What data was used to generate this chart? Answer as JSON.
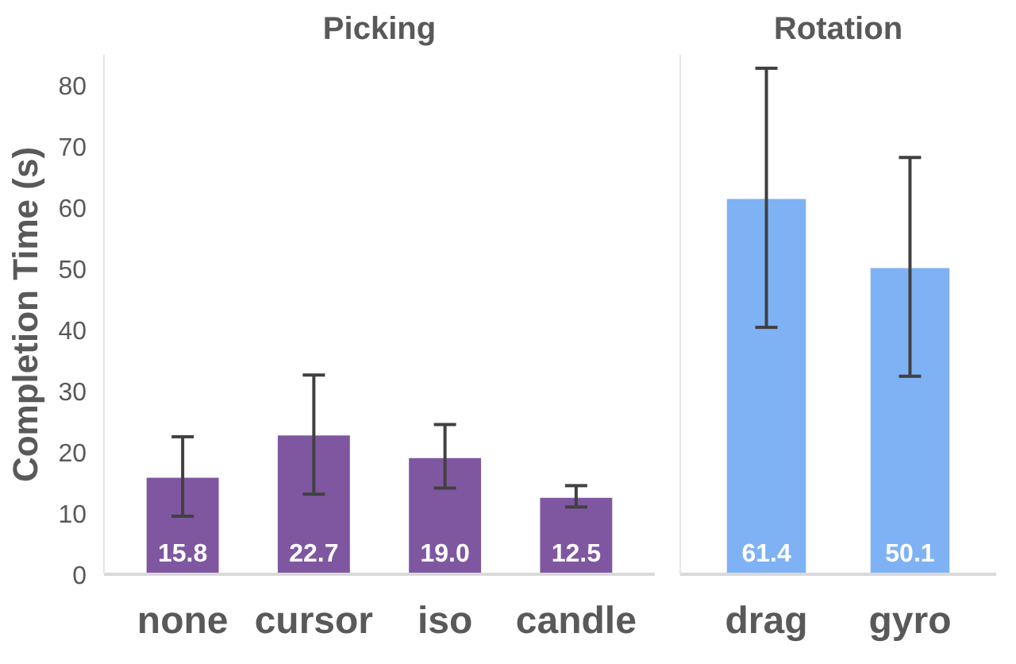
{
  "chart_data": [
    {
      "type": "bar",
      "title": "Picking",
      "ylabel": "Completion Time (s)",
      "categories": [
        "none",
        "cursor",
        "iso",
        "candle"
      ],
      "values": [
        15.8,
        22.7,
        19.0,
        12.5
      ],
      "color": "#7f57a0",
      "errors": [
        [
          9.5,
          22.5
        ],
        [
          13.1,
          32.6
        ],
        [
          14.1,
          24.5
        ],
        [
          11.0,
          14.5
        ]
      ],
      "value_labels": [
        "15.8",
        "22.7",
        "19.0",
        "12.5"
      ],
      "ylim": [
        0,
        85
      ],
      "yticks": [
        0,
        10,
        20,
        30,
        40,
        50,
        60,
        70,
        80
      ],
      "grid": false
    },
    {
      "type": "bar",
      "title": "Rotation",
      "categories": [
        "drag",
        "gyro"
      ],
      "values": [
        61.4,
        50.1
      ],
      "color": "#7fb2f5",
      "errors": [
        [
          40.4,
          82.8
        ],
        [
          32.4,
          68.2
        ]
      ],
      "value_labels": [
        "61.4",
        "50.1"
      ],
      "ylim": [
        0,
        85
      ],
      "yticks": [
        0,
        10,
        20,
        30,
        40,
        50,
        60,
        70,
        80
      ],
      "grid": false,
      "tick_labels": "x"
    }
  ]
}
